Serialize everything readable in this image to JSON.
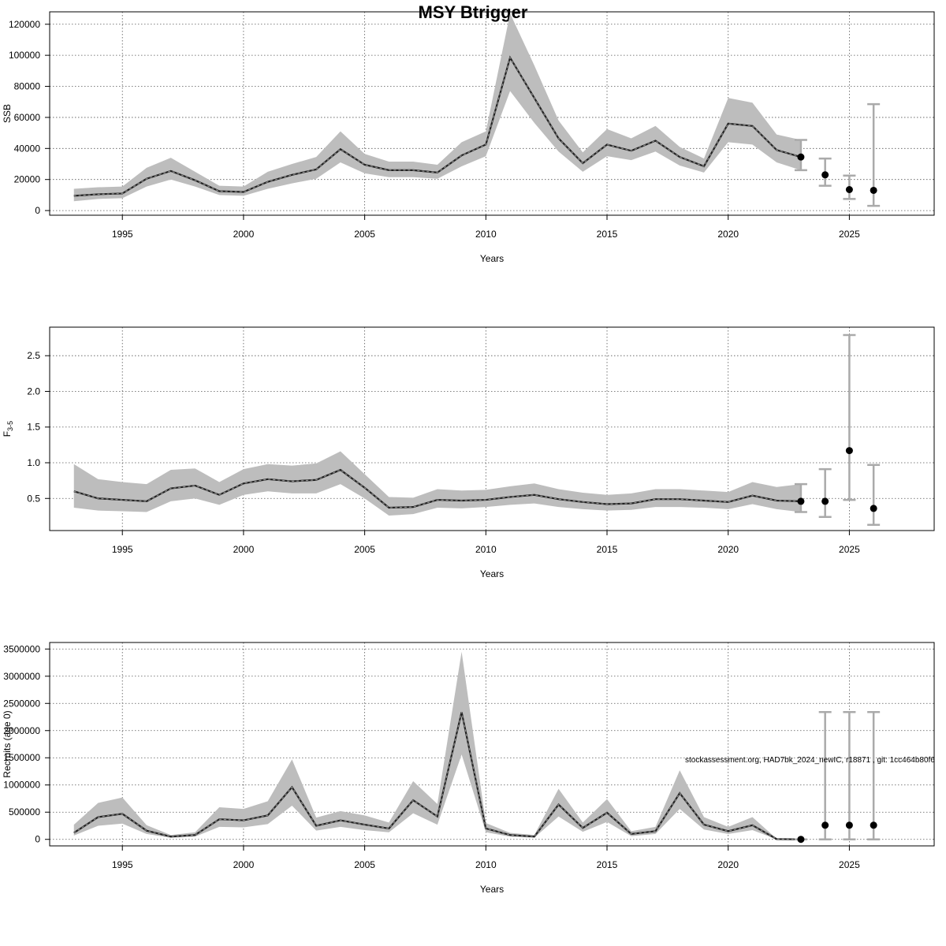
{
  "title": "MSY Btrigger",
  "footer_stamp": "stockassessment.org, HAD7bk_2024_newIC, r18871 , git: 1cc464b80f6",
  "colors": {
    "band": "#bdbdbd",
    "line": "#222222",
    "errorbar": "#aaaaaa",
    "point": "#000000",
    "grid": "#555555"
  },
  "chart_data": [
    {
      "type": "line",
      "ylabel": "SSB",
      "xlabel": "Years",
      "xlim": [
        1992.0,
        2028.5
      ],
      "ylim": [
        -3000,
        128000
      ],
      "xticks": [
        1995,
        2000,
        2005,
        2010,
        2015,
        2020,
        2025
      ],
      "yticks": [
        0,
        20000,
        40000,
        60000,
        80000,
        100000,
        120000
      ],
      "ytick_labels": [
        "0",
        "20000",
        "40000",
        "60000",
        "80000",
        "100000",
        "120000"
      ],
      "grid": true,
      "series": [
        {
          "x": [
            1993,
            1994,
            1995,
            1996,
            1997,
            1998,
            1999,
            2000,
            2001,
            2002,
            2003,
            2004,
            2005,
            2006,
            2007,
            2008,
            2009,
            2010,
            2011,
            2012,
            2013,
            2014,
            2015,
            2016,
            2017,
            2018,
            2019,
            2020,
            2021,
            2022,
            2023
          ],
          "y": [
            9500,
            10500,
            11000,
            20500,
            25500,
            19500,
            12500,
            12000,
            18500,
            23000,
            26500,
            39500,
            29500,
            26000,
            26000,
            24500,
            35500,
            42500,
            98500,
            72500,
            46500,
            30500,
            42500,
            38500,
            45000,
            34500,
            28500,
            56000,
            54500,
            39000,
            34500
          ],
          "lower": [
            6000,
            7500,
            8000,
            15500,
            20000,
            15500,
            10000,
            9500,
            14000,
            17500,
            20500,
            31000,
            24000,
            21500,
            21500,
            20500,
            28500,
            35000,
            77000,
            56500,
            38000,
            25000,
            35000,
            32500,
            38000,
            29000,
            24500,
            44000,
            42500,
            31000,
            26000
          ],
          "upper": [
            14000,
            15000,
            15500,
            27500,
            34000,
            25000,
            16000,
            15500,
            25000,
            30000,
            34500,
            51000,
            36500,
            31500,
            31500,
            29500,
            44000,
            51000,
            127000,
            93500,
            58000,
            37500,
            52500,
            46500,
            54500,
            41000,
            33500,
            72500,
            69500,
            49000,
            45500
          ]
        }
      ],
      "forecast": {
        "x": [
          2024,
          2025,
          2026
        ],
        "y": [
          23000,
          13500,
          13000
        ],
        "lower": [
          16000,
          7500,
          3000
        ],
        "upper": [
          33500,
          22500,
          68500
        ]
      }
    },
    {
      "type": "line",
      "ylabel": "F",
      "ylabel_sub": "3-5",
      "xlabel": "Years",
      "xlim": [
        1992.0,
        2028.5
      ],
      "ylim": [
        0.05,
        2.9
      ],
      "xticks": [
        1995,
        2000,
        2005,
        2010,
        2015,
        2020,
        2025
      ],
      "yticks": [
        0.5,
        1.0,
        1.5,
        2.0,
        2.5
      ],
      "ytick_labels": [
        "0.5",
        "1.0",
        "1.5",
        "2.0",
        "2.5"
      ],
      "grid": true,
      "series": [
        {
          "x": [
            1993,
            1994,
            1995,
            1996,
            1997,
            1998,
            1999,
            2000,
            2001,
            2002,
            2003,
            2004,
            2005,
            2006,
            2007,
            2008,
            2009,
            2010,
            2011,
            2012,
            2013,
            2014,
            2015,
            2016,
            2017,
            2018,
            2019,
            2020,
            2021,
            2022,
            2023
          ],
          "y": [
            0.6,
            0.5,
            0.48,
            0.46,
            0.64,
            0.68,
            0.55,
            0.71,
            0.77,
            0.74,
            0.76,
            0.9,
            0.65,
            0.37,
            0.38,
            0.48,
            0.47,
            0.48,
            0.52,
            0.55,
            0.49,
            0.45,
            0.42,
            0.43,
            0.49,
            0.49,
            0.47,
            0.45,
            0.54,
            0.47,
            0.46
          ],
          "lower": [
            0.37,
            0.33,
            0.32,
            0.31,
            0.46,
            0.5,
            0.41,
            0.55,
            0.6,
            0.57,
            0.57,
            0.7,
            0.5,
            0.26,
            0.28,
            0.37,
            0.36,
            0.38,
            0.41,
            0.43,
            0.38,
            0.35,
            0.33,
            0.34,
            0.38,
            0.38,
            0.37,
            0.35,
            0.42,
            0.35,
            0.31
          ],
          "upper": [
            0.98,
            0.77,
            0.73,
            0.7,
            0.9,
            0.92,
            0.73,
            0.91,
            0.98,
            0.96,
            0.99,
            1.16,
            0.84,
            0.52,
            0.51,
            0.63,
            0.61,
            0.62,
            0.67,
            0.71,
            0.63,
            0.58,
            0.55,
            0.57,
            0.63,
            0.63,
            0.61,
            0.59,
            0.73,
            0.66,
            0.7
          ]
        }
      ],
      "forecast": {
        "x": [
          2024,
          2025,
          2026
        ],
        "y": [
          0.46,
          1.17,
          0.36
        ],
        "lower": [
          0.24,
          0.48,
          0.13
        ],
        "upper": [
          0.91,
          2.79,
          0.97
        ]
      }
    },
    {
      "type": "line",
      "ylabel": "Recruits (age 0)",
      "xlabel": "Years",
      "xlim": [
        1992.0,
        2028.5
      ],
      "ylim": [
        -120000,
        3620000
      ],
      "xticks": [
        1995,
        2000,
        2005,
        2010,
        2015,
        2020,
        2025
      ],
      "yticks": [
        0,
        500000,
        1000000,
        1500000,
        2000000,
        2500000,
        3000000,
        3500000
      ],
      "ytick_labels": [
        "0",
        "500000",
        "1000000",
        "1500000",
        "2000000",
        "2500000",
        "3000000",
        "3500000"
      ],
      "grid": true,
      "series": [
        {
          "x": [
            1993,
            1994,
            1995,
            1996,
            1997,
            1998,
            1999,
            2000,
            2001,
            2002,
            2003,
            2004,
            2005,
            2006,
            2007,
            2008,
            2009,
            2010,
            2011,
            2012,
            2013,
            2014,
            2015,
            2016,
            2017,
            2018,
            2019,
            2020,
            2021,
            2022,
            2023
          ],
          "y": [
            120000,
            410000,
            470000,
            160000,
            50000,
            80000,
            370000,
            350000,
            440000,
            960000,
            250000,
            350000,
            270000,
            200000,
            720000,
            420000,
            2340000,
            200000,
            80000,
            50000,
            640000,
            210000,
            490000,
            100000,
            150000,
            850000,
            270000,
            150000,
            260000,
            5000,
            0
          ],
          "lower": [
            70000,
            250000,
            290000,
            100000,
            30000,
            50000,
            230000,
            220000,
            280000,
            620000,
            160000,
            230000,
            170000,
            130000,
            480000,
            270000,
            1560000,
            130000,
            50000,
            30000,
            420000,
            140000,
            320000,
            60000,
            100000,
            560000,
            180000,
            100000,
            170000,
            2000,
            0
          ],
          "upper": [
            270000,
            670000,
            770000,
            260000,
            80000,
            130000,
            590000,
            560000,
            700000,
            1470000,
            400000,
            520000,
            440000,
            310000,
            1070000,
            650000,
            3450000,
            300000,
            120000,
            80000,
            930000,
            310000,
            740000,
            150000,
            230000,
            1270000,
            410000,
            230000,
            410000,
            10000,
            0
          ]
        }
      ],
      "forecast": {
        "x": [
          2024,
          2025,
          2026
        ],
        "y": [
          260000,
          260000,
          260000
        ],
        "lower": [
          0,
          0,
          0
        ],
        "upper": [
          2340000,
          2340000,
          2340000
        ]
      }
    }
  ]
}
